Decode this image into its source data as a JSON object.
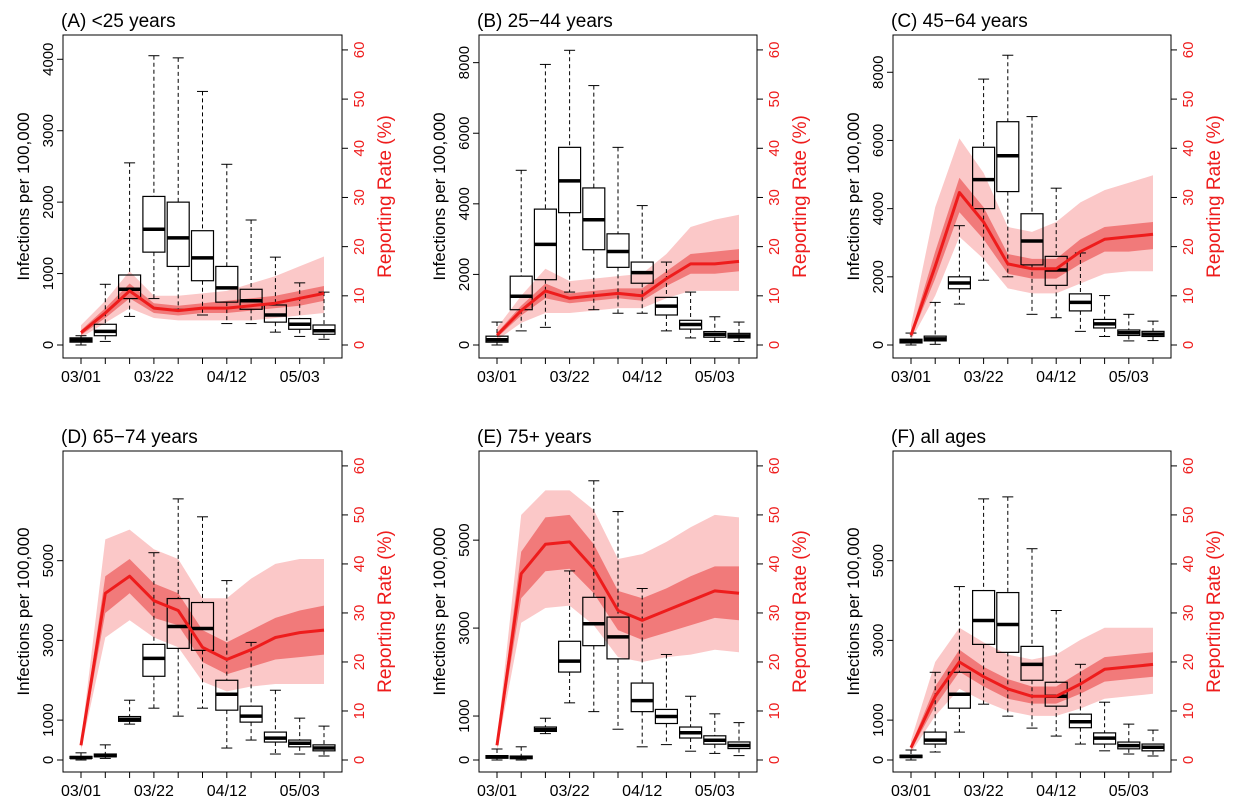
{
  "chart_data": [
    {
      "type": "box",
      "title": "(A) <25 years",
      "ylabel": "Infections per 100,000",
      "y2label": "Reporting Rate (%)",
      "x_tick_labels": [
        "03/01",
        "03/22",
        "04/12",
        "05/03"
      ],
      "ylim": [
        0,
        4200
      ],
      "yticks": [
        0,
        1000,
        2000,
        3000,
        4000
      ],
      "y2lim": [
        0,
        61
      ],
      "y2ticks": [
        0,
        10,
        20,
        30,
        40,
        50,
        60
      ],
      "boxes": [
        {
          "min": 0,
          "q1": 40,
          "median": 70,
          "q3": 100,
          "max": 130
        },
        {
          "min": 50,
          "q1": 130,
          "median": 190,
          "q3": 290,
          "max": 850
        },
        {
          "min": 400,
          "q1": 650,
          "median": 780,
          "q3": 980,
          "max": 2550
        },
        {
          "min": 650,
          "q1": 1300,
          "median": 1620,
          "q3": 2080,
          "max": 4050
        },
        {
          "min": 500,
          "q1": 1100,
          "median": 1500,
          "q3": 2000,
          "max": 4020
        },
        {
          "min": 420,
          "q1": 900,
          "median": 1220,
          "q3": 1600,
          "max": 3550
        },
        {
          "min": 300,
          "q1": 600,
          "median": 800,
          "q3": 1100,
          "max": 2530
        },
        {
          "min": 300,
          "q1": 500,
          "median": 620,
          "q3": 780,
          "max": 1750
        },
        {
          "min": 180,
          "q1": 320,
          "median": 420,
          "q3": 560,
          "max": 1230
        },
        {
          "min": 120,
          "q1": 220,
          "median": 290,
          "q3": 370,
          "max": 870
        },
        {
          "min": 80,
          "q1": 150,
          "median": 200,
          "q3": 280,
          "max": 740
        }
      ],
      "rate": {
        "mean": [
          2.5,
          6.5,
          11,
          7.5,
          7,
          7.5,
          7.5,
          8,
          8.5,
          9.5,
          10.5
        ],
        "inner_lo": [
          2,
          5.5,
          9.5,
          6.5,
          6,
          6.5,
          6.5,
          7,
          7.5,
          8,
          9
        ],
        "inner_hi": [
          3,
          7.5,
          12.5,
          8.5,
          8,
          8.5,
          9,
          9.5,
          10,
          11,
          12
        ],
        "outer_lo": [
          1.5,
          4.5,
          7.5,
          5.5,
          5,
          5,
          5,
          5,
          5.5,
          6,
          6.5
        ],
        "outer_hi": [
          4,
          9,
          15,
          10,
          10,
          10.5,
          11,
          12.5,
          14,
          16,
          18
        ]
      }
    },
    {
      "type": "box",
      "title": "(B) 25−44 years",
      "ylabel": "Infections per 100,000",
      "y2label": "Reporting Rate (%)",
      "x_tick_labels": [
        "03/01",
        "03/22",
        "04/12",
        "05/03"
      ],
      "ylim": [
        0,
        8500
      ],
      "yticks": [
        0,
        2000,
        4000,
        6000,
        8000
      ],
      "y2lim": [
        0,
        61
      ],
      "y2ticks": [
        0,
        10,
        20,
        30,
        40,
        50,
        60
      ],
      "boxes": [
        {
          "min": 0,
          "q1": 80,
          "median": 150,
          "q3": 250,
          "max": 650
        },
        {
          "min": 400,
          "q1": 1000,
          "median": 1380,
          "q3": 1950,
          "max": 4950
        },
        {
          "min": 500,
          "q1": 1850,
          "median": 2850,
          "q3": 3850,
          "max": 7950
        },
        {
          "min": 1500,
          "q1": 3750,
          "median": 4650,
          "q3": 5600,
          "max": 8350
        },
        {
          "min": 1000,
          "q1": 2700,
          "median": 3550,
          "q3": 4450,
          "max": 7350
        },
        {
          "min": 900,
          "q1": 2200,
          "median": 2650,
          "q3": 3150,
          "max": 5600
        },
        {
          "min": 900,
          "q1": 1750,
          "median": 2050,
          "q3": 2350,
          "max": 3950
        },
        {
          "min": 400,
          "q1": 850,
          "median": 1100,
          "q3": 1350,
          "max": 2350
        },
        {
          "min": 200,
          "q1": 450,
          "median": 580,
          "q3": 700,
          "max": 1500
        },
        {
          "min": 100,
          "q1": 220,
          "median": 300,
          "q3": 380,
          "max": 800
        },
        {
          "min": 100,
          "q1": 200,
          "median": 260,
          "q3": 330,
          "max": 650
        }
      ],
      "rate": {
        "mean": [
          2,
          7,
          11,
          9.5,
          10,
          10.5,
          10,
          13.5,
          16.5,
          16.5,
          17
        ],
        "inner_lo": [
          1.5,
          6,
          9.5,
          8.5,
          9,
          9.5,
          9,
          12,
          14.5,
          14.5,
          15
        ],
        "inner_hi": [
          2.5,
          8,
          12.5,
          10.5,
          11,
          11.5,
          11.5,
          15,
          18.5,
          19,
          19.5
        ],
        "outer_lo": [
          1,
          4.5,
          6.5,
          6.5,
          7,
          7.5,
          7.5,
          9.5,
          11,
          11,
          11
        ],
        "outer_hi": [
          3.5,
          10,
          15.5,
          13,
          13.5,
          14,
          14.5,
          18.5,
          24,
          25.5,
          26.5
        ]
      }
    },
    {
      "type": "box",
      "title": "(C) 45−64 years",
      "ylabel": "Infections per 100,000",
      "y2label": "Reporting Rate (%)",
      "x_tick_labels": [
        "03/01",
        "03/22",
        "04/12",
        "05/03"
      ],
      "ylim": [
        0,
        8800
      ],
      "yticks": [
        0,
        2000,
        4000,
        6000,
        8000
      ],
      "y2lim": [
        0,
        61
      ],
      "y2ticks": [
        0,
        10,
        20,
        30,
        40,
        50,
        60
      ],
      "boxes": [
        {
          "min": 0,
          "q1": 60,
          "median": 110,
          "q3": 170,
          "max": 350
        },
        {
          "min": 20,
          "q1": 120,
          "median": 180,
          "q3": 260,
          "max": 1250
        },
        {
          "min": 1200,
          "q1": 1650,
          "median": 1820,
          "q3": 2000,
          "max": 3500
        },
        {
          "min": 1900,
          "q1": 4000,
          "median": 4850,
          "q3": 5800,
          "max": 7800
        },
        {
          "min": 2000,
          "q1": 4500,
          "median": 5550,
          "q3": 6550,
          "max": 8500
        },
        {
          "min": 900,
          "q1": 2350,
          "median": 3050,
          "q3": 3850,
          "max": 6700
        },
        {
          "min": 800,
          "q1": 1750,
          "median": 2200,
          "q3": 2600,
          "max": 4600
        },
        {
          "min": 400,
          "q1": 1000,
          "median": 1250,
          "q3": 1500,
          "max": 2700
        },
        {
          "min": 250,
          "q1": 500,
          "median": 620,
          "q3": 750,
          "max": 1450
        },
        {
          "min": 120,
          "q1": 280,
          "median": 360,
          "q3": 440,
          "max": 900
        },
        {
          "min": 130,
          "q1": 250,
          "median": 320,
          "q3": 400,
          "max": 700
        }
      ],
      "rate": {
        "mean": [
          2,
          16,
          31,
          25,
          16.5,
          15.5,
          15.5,
          19,
          21.5,
          22,
          22.5
        ],
        "inner_lo": [
          1.5,
          13.5,
          27,
          21.5,
          14.5,
          13.5,
          13.5,
          16.5,
          19,
          19,
          19.5
        ],
        "inner_hi": [
          2.5,
          19,
          34,
          28,
          18.5,
          17.5,
          17.5,
          21.5,
          24,
          24.5,
          25
        ],
        "outer_lo": [
          1,
          10,
          22,
          17.5,
          11.5,
          10.5,
          10.5,
          12.5,
          14.5,
          15,
          15
        ],
        "outer_hi": [
          4,
          28,
          42,
          35,
          24,
          23,
          25,
          29,
          31.5,
          33,
          34.5
        ]
      }
    },
    {
      "type": "box",
      "title": "(D) 65−74 years",
      "ylabel": "Infections per 100,000",
      "y2label": "Reporting Rate (%)",
      "x_tick_labels": [
        "03/01",
        "03/22",
        "04/12",
        "05/03"
      ],
      "ylim": [
        0,
        7500
      ],
      "yticks": [
        0,
        1000,
        3000,
        5000
      ],
      "y2lim": [
        0,
        61
      ],
      "y2ticks": [
        0,
        10,
        20,
        30,
        40,
        50,
        60
      ],
      "boxes": [
        {
          "min": 0,
          "q1": 40,
          "median": 60,
          "q3": 90,
          "max": 180
        },
        {
          "min": 40,
          "q1": 80,
          "median": 110,
          "q3": 150,
          "max": 380
        },
        {
          "min": 900,
          "q1": 970,
          "median": 1020,
          "q3": 1090,
          "max": 1500
        },
        {
          "min": 1300,
          "q1": 2100,
          "median": 2550,
          "q3": 2900,
          "max": 5200
        },
        {
          "min": 1100,
          "q1": 2800,
          "median": 3350,
          "q3": 4050,
          "max": 6550
        },
        {
          "min": 1300,
          "q1": 2750,
          "median": 3300,
          "q3": 3950,
          "max": 6100
        },
        {
          "min": 300,
          "q1": 1250,
          "median": 1650,
          "q3": 2000,
          "max": 4500
        },
        {
          "min": 500,
          "q1": 950,
          "median": 1100,
          "q3": 1350,
          "max": 2950
        },
        {
          "min": 150,
          "q1": 450,
          "median": 550,
          "q3": 700,
          "max": 1750
        },
        {
          "min": 150,
          "q1": 330,
          "median": 420,
          "q3": 500,
          "max": 1050
        },
        {
          "min": 100,
          "q1": 230,
          "median": 300,
          "q3": 380,
          "max": 850
        }
      ],
      "rate": {
        "mean": [
          3,
          34,
          37.5,
          32.5,
          30.5,
          23,
          20.5,
          22.5,
          25,
          26,
          26.5
        ],
        "inner_lo": [
          2.5,
          30,
          34,
          29,
          27.5,
          20,
          17.5,
          19,
          20.5,
          21,
          21.5
        ],
        "inner_hi": [
          3.5,
          37.5,
          41,
          36,
          34,
          26.5,
          24,
          26.5,
          29,
          30.5,
          31.5
        ],
        "outer_lo": [
          2,
          25,
          28.5,
          25,
          23,
          16,
          14,
          15,
          15.5,
          15.5,
          15.5
        ],
        "outer_hi": [
          4,
          45,
          47,
          43,
          41,
          33,
          33,
          37,
          40,
          41,
          41
        ]
      }
    },
    {
      "type": "box",
      "title": "(E) 75+ years",
      "ylabel": "Infections per 100,000",
      "y2label": "Reporting Rate (%)",
      "x_tick_labels": [
        "03/01",
        "03/22",
        "04/12",
        "05/03"
      ],
      "ylim": [
        0,
        6800
      ],
      "yticks": [
        0,
        1000,
        3000,
        5000
      ],
      "y2lim": [
        0,
        61
      ],
      "y2ticks": [
        0,
        10,
        20,
        30,
        40,
        50,
        60
      ],
      "boxes": [
        {
          "min": 0,
          "q1": 40,
          "median": 70,
          "q3": 100,
          "max": 250
        },
        {
          "min": 0,
          "q1": 30,
          "median": 60,
          "q3": 90,
          "max": 300
        },
        {
          "min": 600,
          "q1": 650,
          "median": 690,
          "q3": 750,
          "max": 950
        },
        {
          "min": 1300,
          "q1": 2000,
          "median": 2250,
          "q3": 2700,
          "max": 4300
        },
        {
          "min": 1100,
          "q1": 2600,
          "median": 3100,
          "q3": 3700,
          "max": 6350
        },
        {
          "min": 700,
          "q1": 2300,
          "median": 2800,
          "q3": 3250,
          "max": 5650
        },
        {
          "min": 300,
          "q1": 1100,
          "median": 1350,
          "q3": 1750,
          "max": 3900
        },
        {
          "min": 350,
          "q1": 830,
          "median": 990,
          "q3": 1150,
          "max": 2400
        },
        {
          "min": 200,
          "q1": 500,
          "median": 620,
          "q3": 750,
          "max": 1450
        },
        {
          "min": 150,
          "q1": 360,
          "median": 450,
          "q3": 550,
          "max": 1050
        },
        {
          "min": 100,
          "q1": 260,
          "median": 330,
          "q3": 410,
          "max": 850
        }
      ],
      "rate": {
        "mean": [
          3,
          38,
          44,
          44.5,
          39,
          30.5,
          28.5,
          30.5,
          32.5,
          34.5,
          34
        ],
        "inner_lo": [
          2.5,
          33,
          38.5,
          39,
          34,
          26.5,
          24.5,
          26,
          27.5,
          29,
          28.5
        ],
        "inner_hi": [
          3.5,
          42.5,
          49.5,
          50,
          44,
          34.5,
          33,
          35,
          37.5,
          39.5,
          39.5
        ],
        "outer_lo": [
          2,
          28,
          31,
          31.5,
          27.5,
          21,
          20,
          21,
          21.5,
          22.5,
          22
        ],
        "outer_hi": [
          4,
          50,
          55,
          55,
          51,
          41,
          42,
          44.5,
          47.5,
          50,
          49.5
        ]
      }
    },
    {
      "type": "box",
      "title": "(F) all ages",
      "ylabel": "Infections per 100,000",
      "y2label": "Reporting Rate (%)",
      "x_tick_labels": [
        "03/01",
        "03/22",
        "04/12",
        "05/03"
      ],
      "ylim": [
        0,
        7500
      ],
      "yticks": [
        0,
        1000,
        3000,
        5000
      ],
      "y2lim": [
        0,
        61
      ],
      "y2ticks": [
        0,
        10,
        20,
        30,
        40,
        50,
        60
      ],
      "boxes": [
        {
          "min": 0,
          "q1": 60,
          "median": 90,
          "q3": 120,
          "max": 250
        },
        {
          "min": 200,
          "q1": 400,
          "median": 500,
          "q3": 700,
          "max": 2200
        },
        {
          "min": 700,
          "q1": 1300,
          "median": 1650,
          "q3": 2200,
          "max": 4350
        },
        {
          "min": 1400,
          "q1": 2900,
          "median": 3500,
          "q3": 4250,
          "max": 6550
        },
        {
          "min": 1100,
          "q1": 2700,
          "median": 3400,
          "q3": 4200,
          "max": 6600
        },
        {
          "min": 800,
          "q1": 2000,
          "median": 2400,
          "q3": 2850,
          "max": 5300
        },
        {
          "min": 600,
          "q1": 1350,
          "median": 1600,
          "q3": 1950,
          "max": 3750
        },
        {
          "min": 400,
          "q1": 810,
          "median": 960,
          "q3": 1150,
          "max": 2400
        },
        {
          "min": 230,
          "q1": 400,
          "median": 550,
          "q3": 680,
          "max": 1450
        },
        {
          "min": 150,
          "q1": 280,
          "median": 360,
          "q3": 450,
          "max": 900
        },
        {
          "min": 100,
          "q1": 230,
          "median": 320,
          "q3": 400,
          "max": 750
        }
      ],
      "rate": {
        "mean": [
          2.5,
          13,
          20,
          17,
          14.5,
          13,
          13,
          15.5,
          18.5,
          19,
          19.5
        ],
        "inner_lo": [
          2,
          11,
          18,
          15,
          12.5,
          11.5,
          11.5,
          13.5,
          16,
          16.5,
          17
        ],
        "inner_hi": [
          3,
          15,
          22.5,
          19,
          16.5,
          15,
          15,
          18,
          21,
          21.5,
          22
        ],
        "outer_lo": [
          1.5,
          9,
          14.5,
          12,
          10,
          9,
          9,
          10.5,
          12.5,
          13,
          13.5
        ],
        "outer_hi": [
          4,
          20,
          27,
          24,
          21.5,
          20.5,
          21.5,
          24.5,
          27,
          27,
          27
        ]
      }
    }
  ]
}
